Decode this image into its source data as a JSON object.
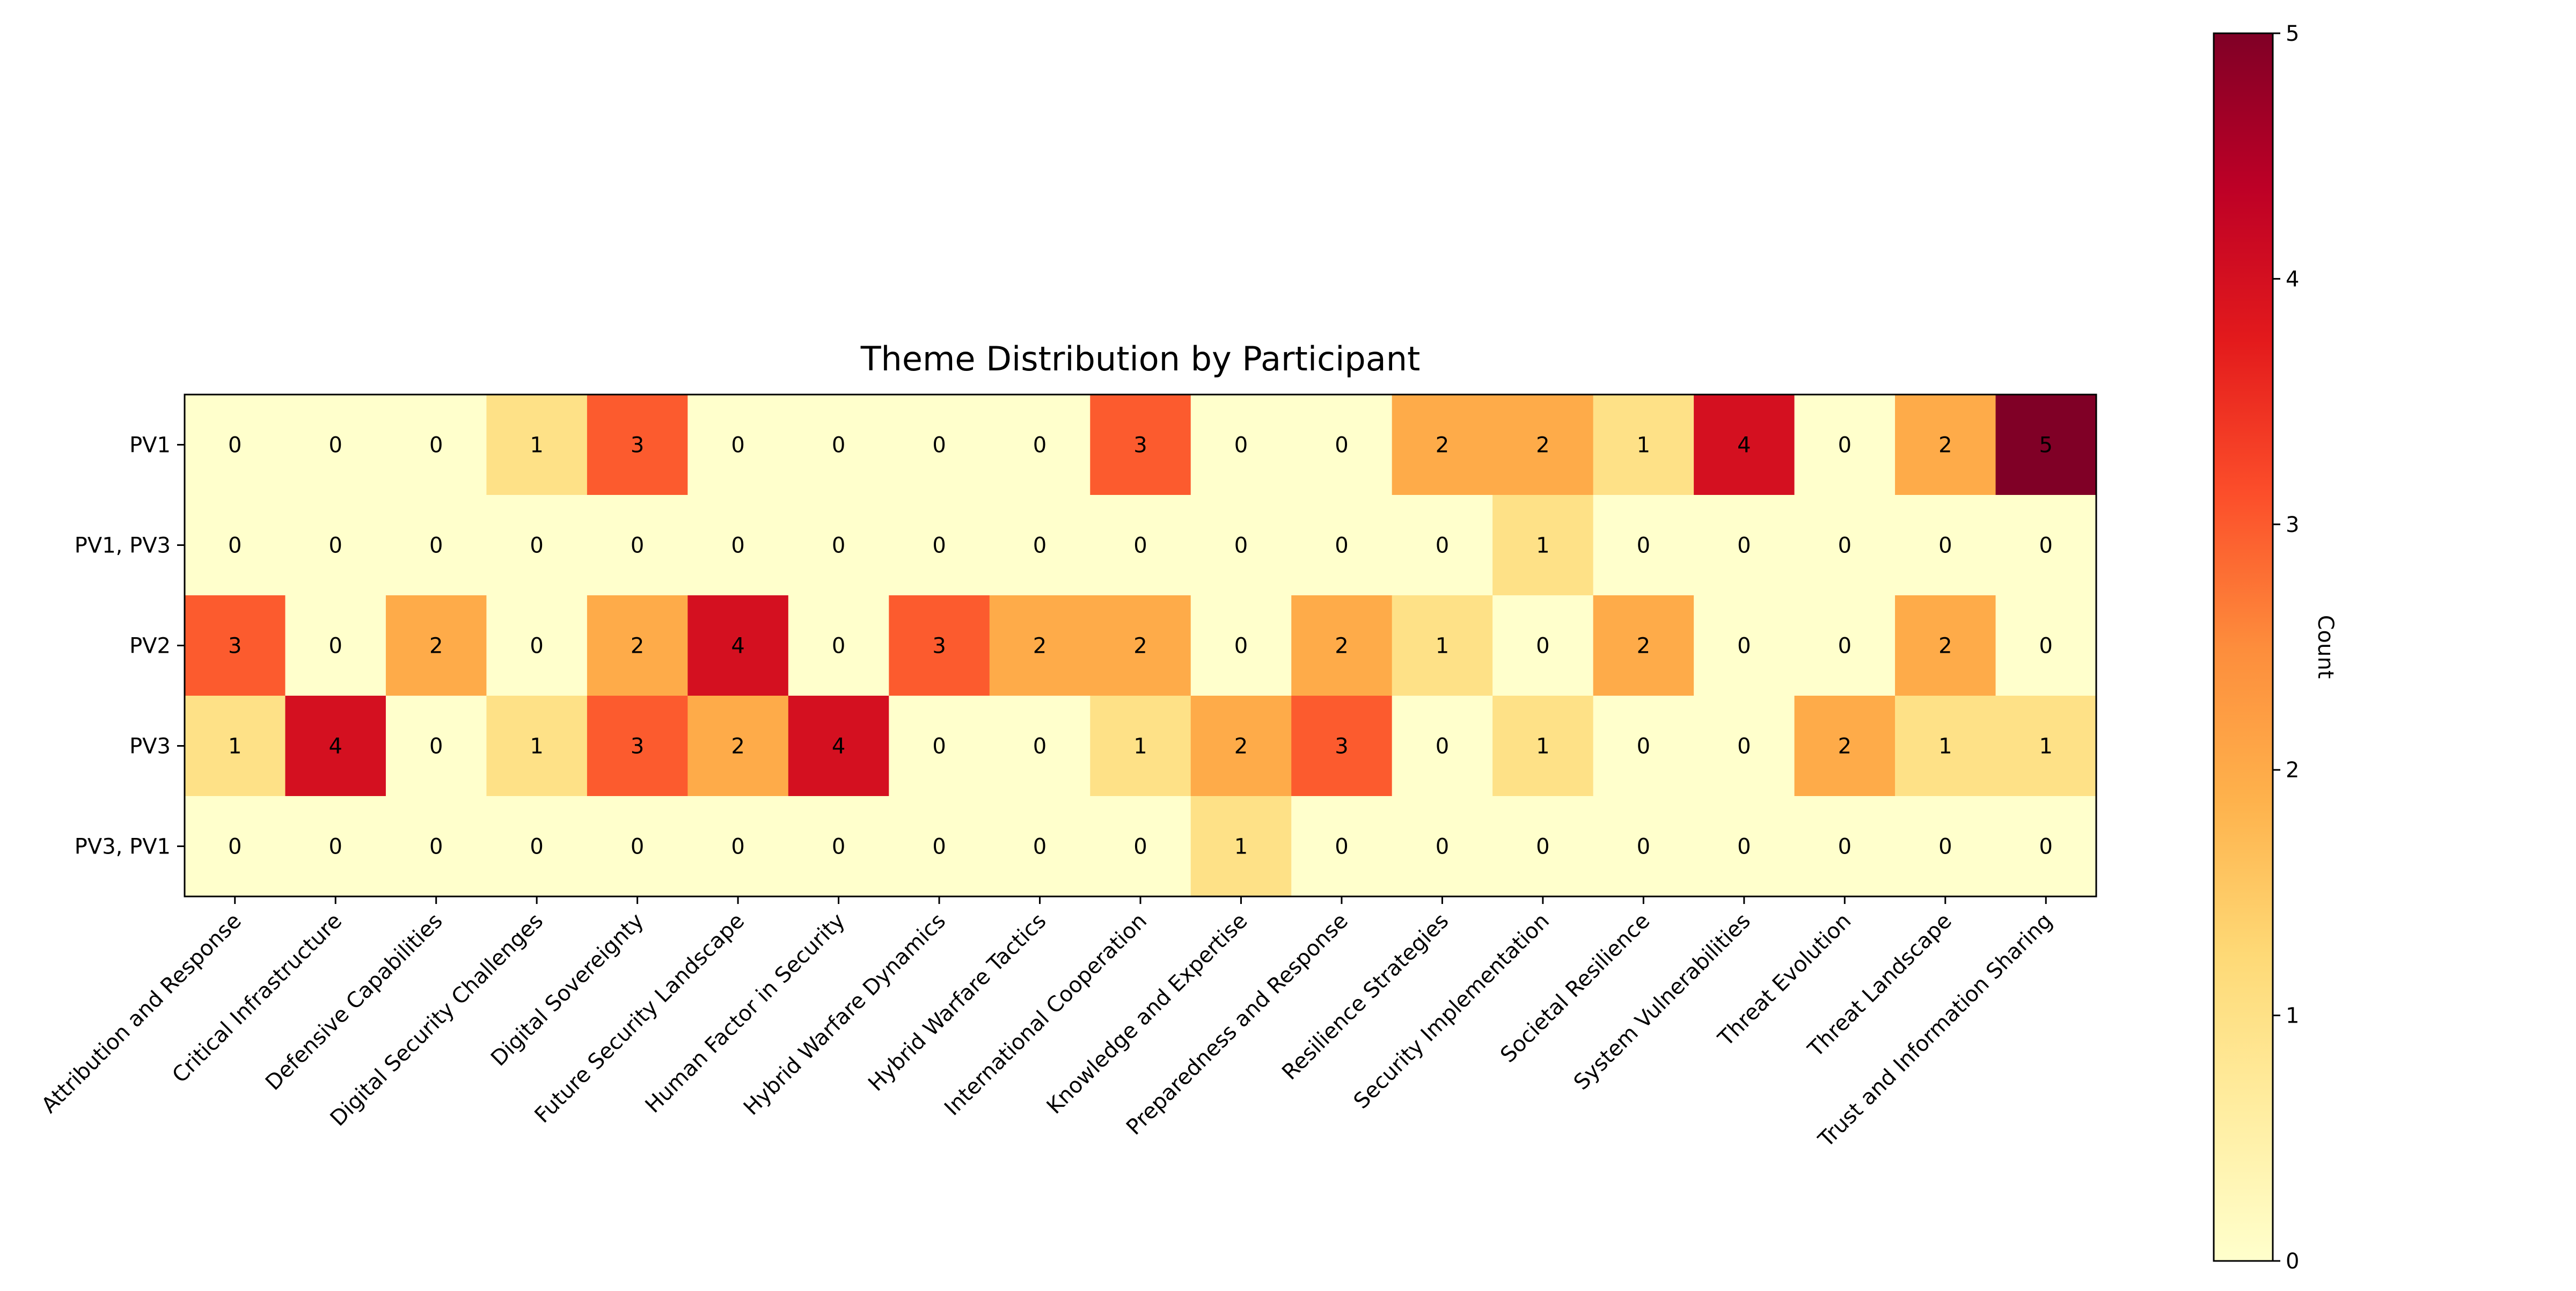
{
  "chart_data": {
    "type": "heatmap",
    "title": "Theme Distribution by Participant",
    "rows": [
      "PV1",
      "PV1, PV3",
      "PV2",
      "PV3",
      "PV3, PV1"
    ],
    "columns": [
      "Attribution and Response",
      "Critical Infrastructure",
      "Defensive Capabilities",
      "Digital Security Challenges",
      "Digital Sovereignty",
      "Future Security Landscape",
      "Human Factor in Security",
      "Hybrid Warfare Dynamics",
      "Hybrid Warfare Tactics",
      "International Cooperation",
      "Knowledge and Expertise",
      "Preparedness and Response",
      "Resilience Strategies",
      "Security Implementation",
      "Societal Resilience",
      "System Vulnerabilities",
      "Threat Evolution",
      "Threat Landscape",
      "Trust and Information Sharing"
    ],
    "values": [
      [
        0,
        0,
        0,
        1,
        3,
        0,
        0,
        0,
        0,
        3,
        0,
        0,
        2,
        2,
        1,
        4,
        0,
        2,
        5
      ],
      [
        0,
        0,
        0,
        0,
        0,
        0,
        0,
        0,
        0,
        0,
        0,
        0,
        0,
        1,
        0,
        0,
        0,
        0,
        0
      ],
      [
        3,
        0,
        2,
        0,
        2,
        4,
        0,
        3,
        2,
        2,
        0,
        2,
        1,
        0,
        2,
        0,
        0,
        2,
        0
      ],
      [
        1,
        4,
        0,
        1,
        3,
        2,
        4,
        0,
        0,
        1,
        2,
        3,
        0,
        1,
        0,
        0,
        2,
        1,
        1
      ],
      [
        0,
        0,
        0,
        0,
        0,
        0,
        0,
        0,
        0,
        0,
        1,
        0,
        0,
        0,
        0,
        0,
        0,
        0,
        0
      ]
    ],
    "colorbar": {
      "label": "Count",
      "range": [
        0,
        5
      ],
      "ticks": [
        "0",
        "1",
        "2",
        "3",
        "4",
        "5"
      ]
    },
    "colormap": "YlOrRd",
    "colors": {
      "0": "#ffffcc",
      "1": "#fee187",
      "2": "#feab49",
      "3": "#fc5b2e",
      "4": "#d41020",
      "5": "#800026"
    }
  }
}
